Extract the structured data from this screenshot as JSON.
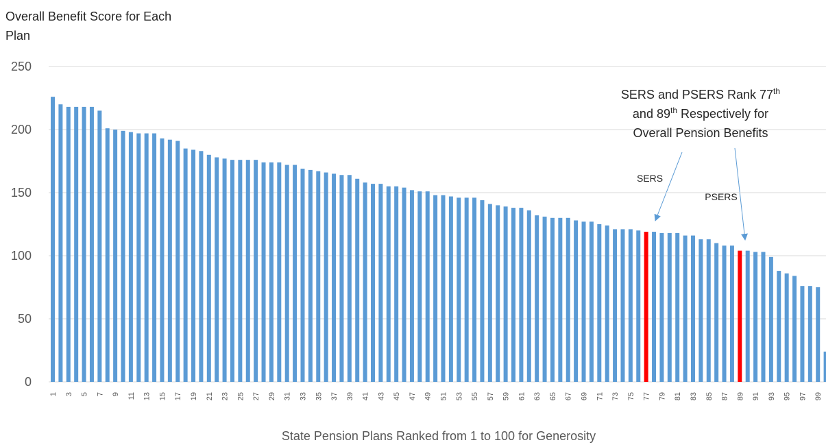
{
  "chart_data": {
    "type": "bar",
    "title": "Overall Benefit Score for Each Plan",
    "x_label": "State Pension Plans Ranked from 1 to 100 for Generosity",
    "categories": [
      "1",
      null,
      "3",
      null,
      "5",
      null,
      "7",
      null,
      "9",
      null,
      "11",
      null,
      "13",
      null,
      "15",
      null,
      "17",
      null,
      "19",
      null,
      "21",
      null,
      "23",
      null,
      "25",
      null,
      "27",
      null,
      "29",
      null,
      "31",
      null,
      "33",
      null,
      "35",
      null,
      "37",
      null,
      "39",
      null,
      "41",
      null,
      "43",
      null,
      "45",
      null,
      "47",
      null,
      "49",
      null,
      "51",
      null,
      "53",
      null,
      "55",
      null,
      "57",
      null,
      "59",
      null,
      "61",
      null,
      "63",
      null,
      "65",
      null,
      "67",
      null,
      "69",
      null,
      "71",
      null,
      "73",
      null,
      "75",
      null,
      "77",
      null,
      "79",
      null,
      "81",
      null,
      "83",
      null,
      "85",
      null,
      "87",
      null,
      "89",
      null,
      "91",
      null,
      "93",
      null,
      "95",
      null,
      "97",
      null,
      "99",
      null
    ],
    "values": [
      226,
      220,
      218,
      218,
      218,
      218,
      215,
      201,
      200,
      199,
      198,
      197,
      197,
      197,
      193,
      192,
      191,
      185,
      184,
      183,
      180,
      178,
      177,
      176,
      176,
      176,
      176,
      174,
      174,
      174,
      172,
      172,
      169,
      168,
      167,
      166,
      165,
      164,
      164,
      161,
      158,
      157,
      157,
      155,
      155,
      154,
      152,
      151,
      151,
      148,
      148,
      147,
      146,
      146,
      146,
      144,
      141,
      140,
      139,
      138,
      138,
      136,
      132,
      131,
      130,
      130,
      130,
      128,
      127,
      127,
      125,
      124,
      121,
      121,
      121,
      120,
      119,
      119,
      118,
      118,
      118,
      116,
      116,
      113,
      113,
      110,
      108,
      108,
      104,
      104,
      103,
      103,
      99,
      88,
      86,
      84,
      76,
      76,
      75,
      24
    ],
    "colors": [
      "#5b9bd5",
      "#5b9bd5",
      "#5b9bd5",
      "#5b9bd5",
      "#5b9bd5",
      "#5b9bd5",
      "#5b9bd5",
      "#5b9bd5",
      "#5b9bd5",
      "#5b9bd5",
      "#5b9bd5",
      "#5b9bd5",
      "#5b9bd5",
      "#5b9bd5",
      "#5b9bd5",
      "#5b9bd5",
      "#5b9bd5",
      "#5b9bd5",
      "#5b9bd5",
      "#5b9bd5",
      "#5b9bd5",
      "#5b9bd5",
      "#5b9bd5",
      "#5b9bd5",
      "#5b9bd5",
      "#5b9bd5",
      "#5b9bd5",
      "#5b9bd5",
      "#5b9bd5",
      "#5b9bd5",
      "#5b9bd5",
      "#5b9bd5",
      "#5b9bd5",
      "#5b9bd5",
      "#5b9bd5",
      "#5b9bd5",
      "#5b9bd5",
      "#5b9bd5",
      "#5b9bd5",
      "#5b9bd5",
      "#5b9bd5",
      "#5b9bd5",
      "#5b9bd5",
      "#5b9bd5",
      "#5b9bd5",
      "#5b9bd5",
      "#5b9bd5",
      "#5b9bd5",
      "#5b9bd5",
      "#5b9bd5",
      "#5b9bd5",
      "#5b9bd5",
      "#5b9bd5",
      "#5b9bd5",
      "#5b9bd5",
      "#5b9bd5",
      "#5b9bd5",
      "#5b9bd5",
      "#5b9bd5",
      "#5b9bd5",
      "#5b9bd5",
      "#5b9bd5",
      "#5b9bd5",
      "#5b9bd5",
      "#5b9bd5",
      "#5b9bd5",
      "#5b9bd5",
      "#5b9bd5",
      "#5b9bd5",
      "#5b9bd5",
      "#5b9bd5",
      "#5b9bd5",
      "#5b9bd5",
      "#5b9bd5",
      "#5b9bd5",
      "#5b9bd5",
      "#ff0000",
      "#5b9bd5",
      "#5b9bd5",
      "#5b9bd5",
      "#5b9bd5",
      "#5b9bd5",
      "#5b9bd5",
      "#5b9bd5",
      "#5b9bd5",
      "#5b9bd5",
      "#5b9bd5",
      "#5b9bd5",
      "#ff0000",
      "#5b9bd5",
      "#5b9bd5",
      "#5b9bd5",
      "#5b9bd5",
      "#5b9bd5",
      "#5b9bd5",
      "#5b9bd5",
      "#5b9bd5",
      "#5b9bd5",
      "#5b9bd5",
      "#5b9bd5"
    ],
    "ylim": [
      0,
      250
    ],
    "yticks": [
      0,
      50,
      100,
      150,
      200,
      250
    ],
    "grid": true,
    "annotation": [
      [
        "SERS and PSERS Rank 77",
        "th"
      ],
      [
        "and 89",
        "th",
        " Respectively for"
      ],
      [
        "Overall Pension Benefits"
      ]
    ],
    "arrow_labels": [
      "SERS",
      "PSERS"
    ]
  }
}
